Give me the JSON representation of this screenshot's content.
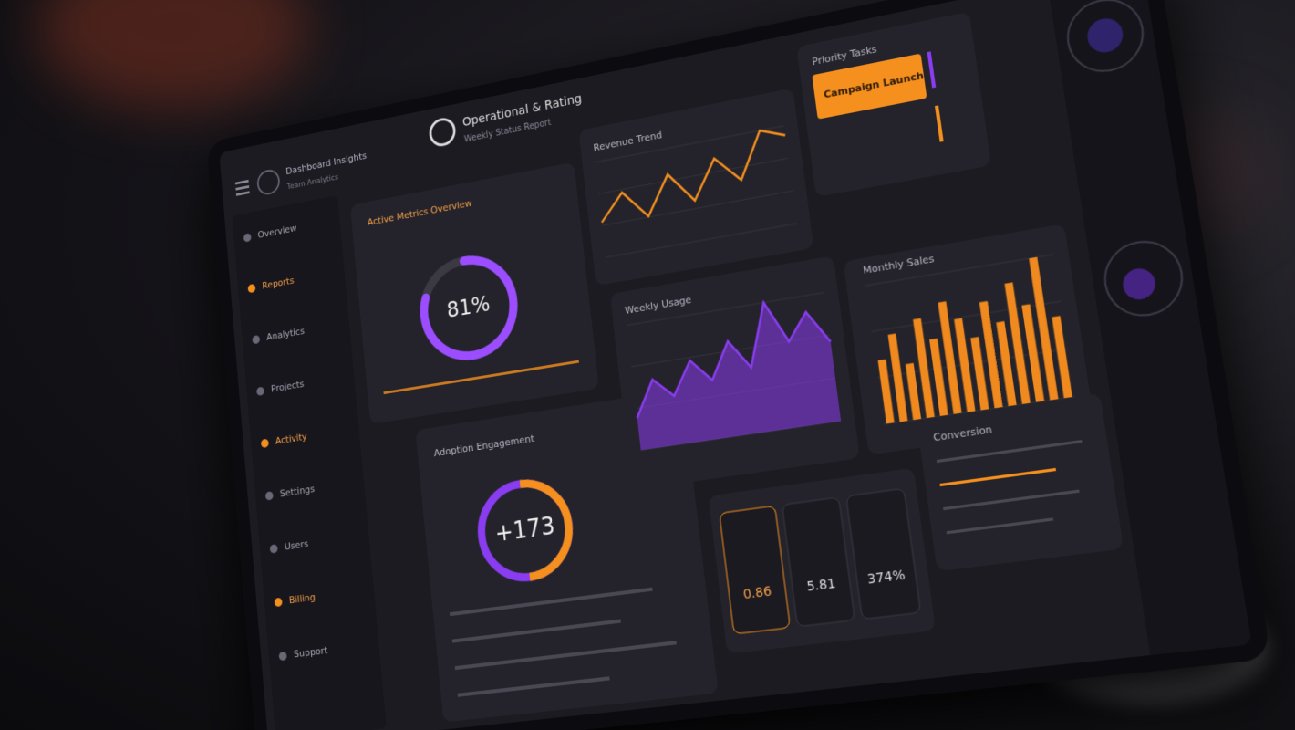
{
  "header": {
    "title": "Operational & Rating",
    "subtitle": "Weekly Status Report"
  },
  "brand": {
    "title": "Dashboard Insights",
    "subtitle": "Team Analytics"
  },
  "nav": [
    "Overview",
    "Reports",
    "Analytics",
    "Projects",
    "Activity",
    "Settings",
    "Users",
    "Billing",
    "Support"
  ],
  "gauge": {
    "title": "Active Metrics Overview",
    "value": 81,
    "value_label": "81%",
    "color": "#9b4dff"
  },
  "gauge2": {
    "title": "Adoption Engagement",
    "label": "+173"
  },
  "tasks": {
    "title": "Priority Tasks",
    "item": "Campaign Launch"
  },
  "cards": [
    "0.86",
    "5.81",
    "374%"
  ],
  "list": {
    "title": "Conversion"
  },
  "chart_data": [
    {
      "type": "line",
      "title": "Revenue Trend",
      "color": "#f5901e",
      "values": [
        30,
        52,
        28,
        60,
        34,
        66,
        44,
        82,
        74
      ]
    },
    {
      "type": "area",
      "title": "Weekly Usage",
      "color": "#8a3cf0",
      "values": [
        20,
        42,
        30,
        50,
        36,
        58,
        40,
        78,
        52,
        68,
        48
      ]
    },
    {
      "type": "bar",
      "title": "Monthly Sales",
      "color": "#f08a1e",
      "values": [
        40,
        55,
        35,
        62,
        48,
        70,
        58,
        45,
        66,
        52,
        75,
        60,
        88,
        50
      ]
    }
  ]
}
